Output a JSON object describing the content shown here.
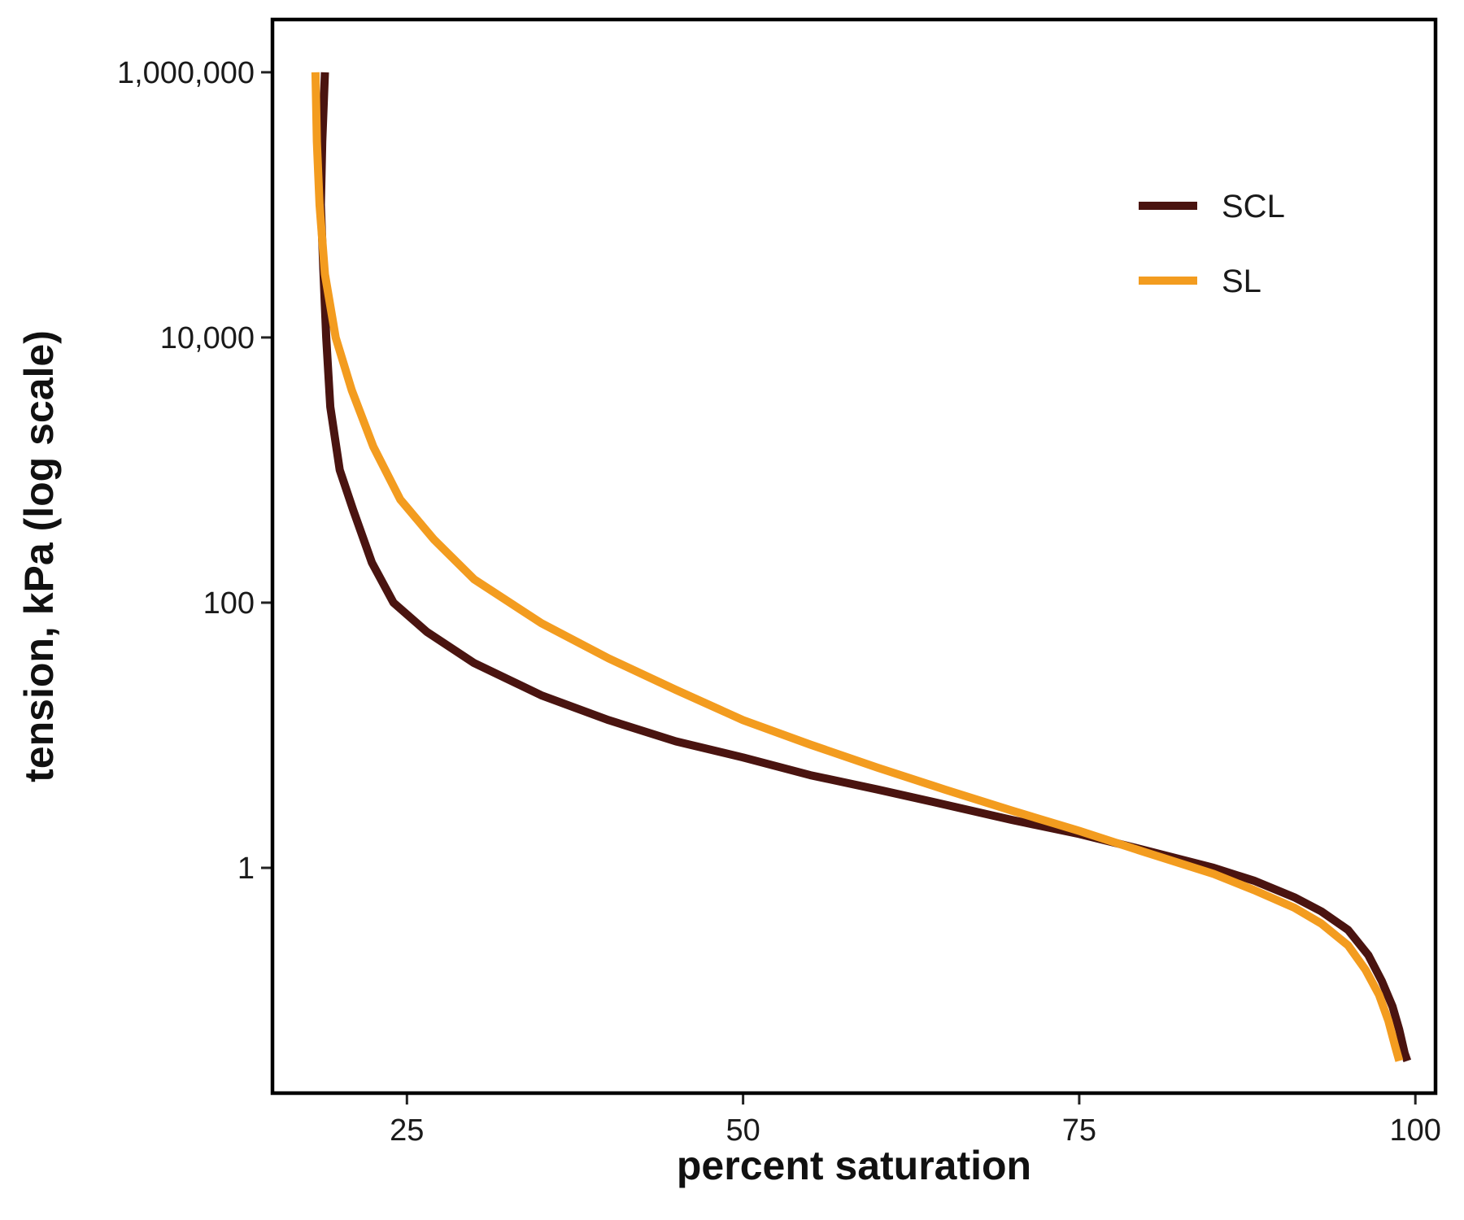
{
  "chart_data": {
    "type": "line",
    "title": "",
    "xlabel": "percent saturation",
    "ylabel": "tension, kPa (log scale)",
    "xlim": [
      15,
      101.5
    ],
    "ylim": [
      0.02,
      2500000
    ],
    "y_scale": "log",
    "grid": false,
    "legend_position": "top-right",
    "x_ticks": [
      {
        "value": 25,
        "label": "25"
      },
      {
        "value": 50,
        "label": "50"
      },
      {
        "value": 75,
        "label": "75"
      },
      {
        "value": 100,
        "label": "100"
      }
    ],
    "y_ticks": [
      {
        "value": 1,
        "label": "1"
      },
      {
        "value": 100,
        "label": "100"
      },
      {
        "value": 10000,
        "label": "10,000"
      },
      {
        "value": 1000000,
        "label": "1,000,000"
      }
    ],
    "series": [
      {
        "name": "SCL",
        "color": "#4a1410",
        "points": [
          [
            18.9,
            1000000
          ],
          [
            18.7,
            300000
          ],
          [
            18.6,
            100000
          ],
          [
            18.8,
            30000
          ],
          [
            19.0,
            10000
          ],
          [
            19.3,
            3000
          ],
          [
            20.0,
            1000
          ],
          [
            21.0,
            500
          ],
          [
            22.4,
            200
          ],
          [
            24.0,
            100
          ],
          [
            26.5,
            60
          ],
          [
            30.0,
            35
          ],
          [
            35.0,
            20
          ],
          [
            40.0,
            13
          ],
          [
            45.0,
            9
          ],
          [
            50.0,
            6.8
          ],
          [
            55.0,
            5.0
          ],
          [
            60.0,
            3.9
          ],
          [
            65.0,
            3.0
          ],
          [
            70.0,
            2.3
          ],
          [
            75.0,
            1.8
          ],
          [
            80.0,
            1.35
          ],
          [
            85.0,
            1.0
          ],
          [
            88.0,
            0.8
          ],
          [
            91.0,
            0.6
          ],
          [
            93.0,
            0.47
          ],
          [
            95.0,
            0.34
          ],
          [
            96.5,
            0.22
          ],
          [
            97.5,
            0.14
          ],
          [
            98.3,
            0.09
          ],
          [
            98.8,
            0.06
          ],
          [
            99.2,
            0.04
          ],
          [
            99.4,
            0.035
          ]
        ]
      },
      {
        "name": "SL",
        "color": "#f39c1f",
        "points": [
          [
            18.2,
            1000000
          ],
          [
            18.3,
            300000
          ],
          [
            18.5,
            100000
          ],
          [
            18.9,
            30000
          ],
          [
            19.7,
            10000
          ],
          [
            20.9,
            4000
          ],
          [
            22.5,
            1500
          ],
          [
            24.5,
            600
          ],
          [
            27.0,
            300
          ],
          [
            30.0,
            150
          ],
          [
            35.0,
            70
          ],
          [
            40.0,
            38
          ],
          [
            45.0,
            22
          ],
          [
            50.0,
            13
          ],
          [
            55.0,
            8.5
          ],
          [
            60.0,
            5.7
          ],
          [
            65.0,
            3.9
          ],
          [
            70.0,
            2.7
          ],
          [
            75.0,
            1.9
          ],
          [
            80.0,
            1.3
          ],
          [
            85.0,
            0.9
          ],
          [
            88.0,
            0.68
          ],
          [
            91.0,
            0.5
          ],
          [
            93.0,
            0.38
          ],
          [
            95.0,
            0.26
          ],
          [
            96.3,
            0.17
          ],
          [
            97.3,
            0.11
          ],
          [
            98.0,
            0.07
          ],
          [
            98.5,
            0.045
          ],
          [
            98.8,
            0.035
          ]
        ]
      }
    ]
  }
}
